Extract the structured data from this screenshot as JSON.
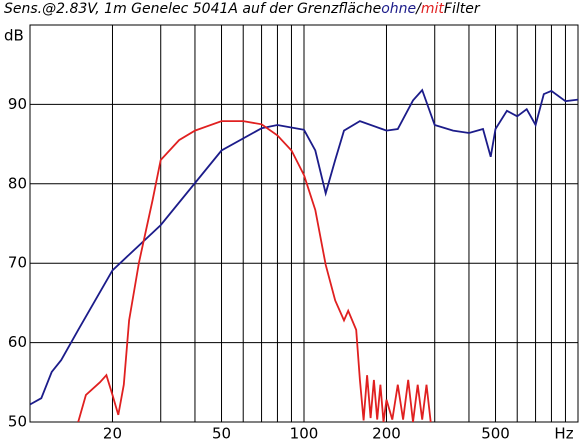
{
  "chart_data": {
    "type": "line",
    "title": "Sens.@2.83V, 1m Genelec 5041A auf der Grenzfläche",
    "title_separator": "/",
    "title_suffix": "Filter",
    "ylabel": "dB",
    "xscale": "log",
    "xlim": [
      10,
      1000
    ],
    "ylim": [
      50,
      100
    ],
    "xticks": [
      20,
      50,
      100,
      200,
      500,
      {
        "value": 1000,
        "label": "Hz"
      }
    ],
    "xminor": [
      30,
      40,
      60,
      70,
      80,
      90,
      300,
      400,
      600,
      700,
      800,
      900
    ],
    "yticks": [
      50,
      60,
      70,
      80,
      90
    ],
    "grid": true,
    "series": [
      {
        "name": "ohne",
        "color": "#1c1c8a",
        "x": [
          10,
          11,
          12,
          13,
          15,
          20,
          30,
          50,
          70,
          80,
          100,
          110,
          120,
          130,
          140,
          160,
          200,
          220,
          250,
          270,
          300,
          350,
          400,
          450,
          480,
          500,
          550,
          600,
          650,
          700,
          750,
          800,
          900,
          1000
        ],
        "values": [
          52.2,
          53,
          56.3,
          57.8,
          61.6,
          69.1,
          74.8,
          84.2,
          87,
          87.4,
          86.8,
          84.2,
          78.8,
          83,
          86.7,
          87.9,
          86.7,
          86.9,
          90.5,
          91.8,
          87.4,
          86.7,
          86.4,
          86.9,
          83.4,
          86.9,
          89.2,
          88.5,
          89.4,
          87.4,
          91.3,
          91.7,
          90.4,
          90.6
        ]
      },
      {
        "name": "mit",
        "color": "#e02020",
        "x": [
          15,
          16,
          18,
          19,
          20,
          21,
          22,
          23,
          25,
          28,
          30,
          35,
          40,
          50,
          60,
          70,
          80,
          90,
          100,
          110,
          120,
          130,
          140,
          145,
          155,
          160,
          165,
          170,
          175,
          180,
          185,
          190,
          195,
          200,
          210,
          220,
          230,
          240,
          250,
          260,
          270,
          280,
          290
        ],
        "values": [
          50,
          53.4,
          55,
          55.9,
          53.4,
          50.9,
          54.7,
          62.8,
          70.1,
          77.9,
          83,
          85.5,
          86.7,
          87.9,
          87.9,
          87.5,
          86.1,
          84.2,
          81.1,
          76.7,
          69.8,
          65.3,
          62.8,
          64,
          61.6,
          55.3,
          50.2,
          55.9,
          50.5,
          55.3,
          50.3,
          54.7,
          50,
          52.8,
          50.3,
          54.7,
          50.3,
          55.3,
          50,
          54.7,
          50.3,
          54.7,
          50
        ]
      }
    ]
  }
}
